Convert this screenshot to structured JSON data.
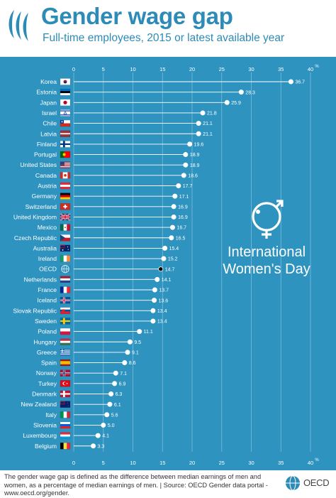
{
  "header": {
    "title": "Gender wage gap",
    "subtitle": "Full-time employees, 2015 or latest available year"
  },
  "badge": {
    "line1": "International",
    "line2": "Women's Day",
    "icon": "female-male-symbol-icon"
  },
  "footer": {
    "note": "The gender wage gap is defined as the difference between median earnings of men and women, as a percentage of median earnings of men. | Source: OECD Gender data portal - www.oecd.org/gender.",
    "brand": "OECD"
  },
  "colors": {
    "title": "#2d8bb8",
    "panel": "#2f93c0",
    "point": "#ffffff",
    "highlight_point": "#000000"
  },
  "chart_data": {
    "type": "dot",
    "x_unit": "%",
    "xlim": [
      0,
      40
    ],
    "xticks": [
      0,
      5,
      10,
      15,
      20,
      25,
      30,
      35,
      40
    ],
    "grid": true,
    "highlight": "OECD",
    "countries": [
      {
        "name": "Korea",
        "value": 36.7,
        "flag": "korea-flag-icon"
      },
      {
        "name": "Estonia",
        "value": 28.3,
        "flag": "estonia-flag-icon"
      },
      {
        "name": "Japan",
        "value": 25.9,
        "flag": "japan-flag-icon"
      },
      {
        "name": "Israel",
        "value": 21.8,
        "flag": "israel-flag-icon"
      },
      {
        "name": "Chile",
        "value": 21.1,
        "flag": "chile-flag-icon"
      },
      {
        "name": "Latvia",
        "value": 21.1,
        "flag": "latvia-flag-icon"
      },
      {
        "name": "Finland",
        "value": 19.6,
        "flag": "finland-flag-icon"
      },
      {
        "name": "Portugal",
        "value": 18.9,
        "flag": "portugal-flag-icon"
      },
      {
        "name": "United States",
        "value": 18.9,
        "flag": "united-states-flag-icon"
      },
      {
        "name": "Canada",
        "value": 18.6,
        "flag": "canada-flag-icon"
      },
      {
        "name": "Austria",
        "value": 17.7,
        "flag": "austria-flag-icon"
      },
      {
        "name": "Germany",
        "value": 17.1,
        "flag": "germany-flag-icon"
      },
      {
        "name": "Switzerland",
        "value": 16.9,
        "flag": "switzerland-flag-icon"
      },
      {
        "name": "United Kingdom",
        "value": 16.9,
        "flag": "united-kingdom-flag-icon"
      },
      {
        "name": "Mexico",
        "value": 16.7,
        "flag": "mexico-flag-icon"
      },
      {
        "name": "Czech Republic",
        "value": 16.5,
        "flag": "czech-republic-flag-icon"
      },
      {
        "name": "Australia",
        "value": 15.4,
        "flag": "australia-flag-icon"
      },
      {
        "name": "Ireland",
        "value": 15.2,
        "flag": "ireland-flag-icon"
      },
      {
        "name": "OECD",
        "value": 14.7,
        "flag": "oecd-globe-icon"
      },
      {
        "name": "Netherlands",
        "value": 14.1,
        "flag": "netherlands-flag-icon"
      },
      {
        "name": "France",
        "value": 13.7,
        "flag": "france-flag-icon"
      },
      {
        "name": "Iceland",
        "value": 13.6,
        "flag": "iceland-flag-icon"
      },
      {
        "name": "Slovak Republic",
        "value": 13.4,
        "flag": "slovak-republic-flag-icon"
      },
      {
        "name": "Sweden",
        "value": 13.4,
        "flag": "sweden-flag-icon"
      },
      {
        "name": "Poland",
        "value": 11.1,
        "flag": "poland-flag-icon"
      },
      {
        "name": "Hungary",
        "value": 9.5,
        "flag": "hungary-flag-icon"
      },
      {
        "name": "Greece",
        "value": 9.1,
        "flag": "greece-flag-icon"
      },
      {
        "name": "Spain",
        "value": 8.6,
        "flag": "spain-flag-icon"
      },
      {
        "name": "Norway",
        "value": 7.1,
        "flag": "norway-flag-icon"
      },
      {
        "name": "Turkey",
        "value": 6.9,
        "flag": "turkey-flag-icon"
      },
      {
        "name": "Denmark",
        "value": 6.3,
        "flag": "denmark-flag-icon"
      },
      {
        "name": "New Zealand",
        "value": 6.1,
        "flag": "new-zealand-flag-icon"
      },
      {
        "name": "Italy",
        "value": 5.6,
        "flag": "italy-flag-icon"
      },
      {
        "name": "Slovenia",
        "value": 5.0,
        "flag": "slovenia-flag-icon"
      },
      {
        "name": "Luxembourg",
        "value": 4.1,
        "flag": "luxembourg-flag-icon"
      },
      {
        "name": "Belgium",
        "value": 3.3,
        "flag": "belgium-flag-icon"
      }
    ]
  }
}
